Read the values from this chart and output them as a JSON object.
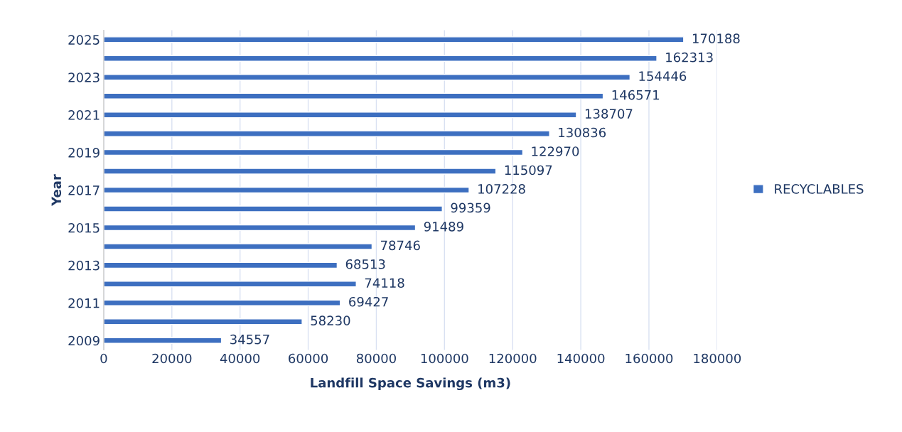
{
  "chart_data": {
    "type": "bar",
    "orientation": "horizontal",
    "xlabel": "Landfill Space Savings (m3)",
    "ylabel": "Year",
    "categories": [
      "2025",
      null,
      "2023",
      null,
      "2021",
      null,
      "2019",
      null,
      "2017",
      null,
      "2015",
      null,
      "2013",
      null,
      "2011",
      null,
      "2009"
    ],
    "series": [
      {
        "name": "RECYCLABLES",
        "color": "#3d6fc0",
        "values": [
          170188,
          162313,
          154446,
          146571,
          138707,
          130836,
          122970,
          115097,
          107228,
          99359,
          91489,
          78746,
          68513,
          74118,
          69427,
          58230,
          34557
        ]
      }
    ],
    "xlim": [
      0,
      180000
    ],
    "xticks": [
      0,
      20000,
      40000,
      60000,
      80000,
      100000,
      120000,
      140000,
      160000,
      180000
    ],
    "data_labels": true,
    "grid": "x",
    "legend": "right"
  }
}
